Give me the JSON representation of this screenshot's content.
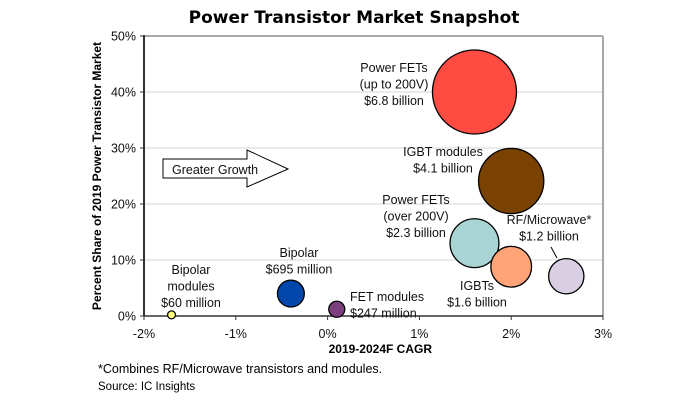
{
  "chart_data": {
    "type": "bubble",
    "title": "Power Transistor Market Snapshot",
    "xlabel": "2019-2024F CAGR",
    "ylabel": "Percent Share of 2019 Power Transistor Market",
    "xlim": [
      -2,
      3
    ],
    "ylim": [
      0,
      50
    ],
    "x_ticks": [
      -2,
      -1,
      0,
      1,
      2,
      3
    ],
    "x_tick_labels": [
      "-2%",
      "-1%",
      "0%",
      "1%",
      "2%",
      "3%"
    ],
    "y_ticks": [
      0,
      10,
      20,
      30,
      40,
      50
    ],
    "y_tick_labels": [
      "0%",
      "10%",
      "20%",
      "30%",
      "40%",
      "50%"
    ],
    "grid": "horizontal",
    "annotation_arrow": "Greater Growth",
    "footnote": "*Combines RF/Microwave transistors and modules.",
    "source": "Source: IC Insights",
    "series": [
      {
        "name": "Power FETs (up to 200V)",
        "label_lines": [
          "Power FETs",
          "(up to 200V)",
          "$6.8 billion"
        ],
        "x": 1.6,
        "y": 40,
        "size": 6.8,
        "color": "#ff4c42"
      },
      {
        "name": "IGBT modules",
        "label_lines": [
          "IGBT modules",
          "$4.1 billion"
        ],
        "x": 2.0,
        "y": 24.1,
        "size": 4.1,
        "color": "#7a4200"
      },
      {
        "name": "Power FETs (over 200V)",
        "label_lines": [
          "Power FETs",
          "(over 200V)",
          "$2.3 billion"
        ],
        "x": 1.6,
        "y": 13.0,
        "size": 2.3,
        "color": "#a8d4d4"
      },
      {
        "name": "IGBTs",
        "label_lines": [
          "IGBTs",
          "$1.6 billion"
        ],
        "x": 2.0,
        "y": 8.8,
        "size": 1.6,
        "color": "#ffa477"
      },
      {
        "name": "RF/Microwave*",
        "label_lines": [
          "RF/Microwave*",
          "$1.2 billion"
        ],
        "x": 2.6,
        "y": 7.1,
        "size": 1.2,
        "color": "#d8cfe3"
      },
      {
        "name": "Bipolar",
        "label_lines": [
          "Bipolar",
          "$695 million"
        ],
        "x": -0.4,
        "y": 4.0,
        "size": 0.695,
        "color": "#0047ab"
      },
      {
        "name": "FET modules",
        "label_lines": [
          "FET modules",
          "$247 million"
        ],
        "x": 0.1,
        "y": 1.2,
        "size": 0.247,
        "color": "#7d3f7d"
      },
      {
        "name": "Bipolar modules",
        "label_lines": [
          "Bipolar",
          "modules",
          "$60 million"
        ],
        "x": -1.7,
        "y": 0.2,
        "size": 0.06,
        "color": "#ffff80"
      }
    ]
  }
}
